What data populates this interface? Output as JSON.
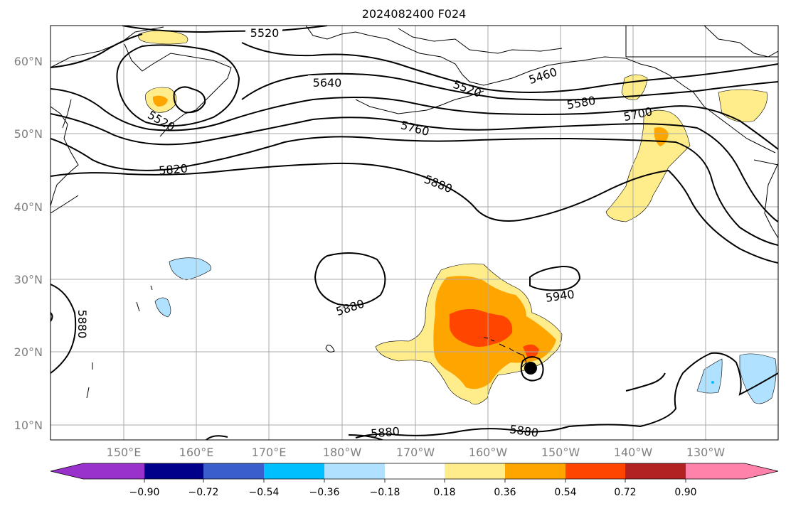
{
  "title": "2024082400 F024",
  "map": {
    "lat_labels": [
      "60°N",
      "50°N",
      "40°N",
      "30°N",
      "20°N",
      "10°N"
    ],
    "lon_labels": [
      "150°E",
      "160°E",
      "170°E",
      "180°W",
      "170°W",
      "160°W",
      "150°W",
      "140°W",
      "130°W"
    ],
    "contour_labels": [
      {
        "text": "5520",
        "id": "label-5520-a"
      },
      {
        "text": "5640",
        "id": "label-5640"
      },
      {
        "text": "5520",
        "id": "label-5520-b"
      },
      {
        "text": "5460",
        "id": "label-5460"
      },
      {
        "text": "5580",
        "id": "label-5580"
      },
      {
        "text": "5700",
        "id": "label-5700"
      },
      {
        "text": "5760",
        "id": "label-5760"
      },
      {
        "text": "5520",
        "id": "label-5520-c"
      },
      {
        "text": "5820",
        "id": "label-5820"
      },
      {
        "text": "5880",
        "id": "label-5880-a"
      },
      {
        "text": "5880",
        "id": "label-5880-b"
      },
      {
        "text": "5940",
        "id": "label-5940"
      },
      {
        "text": "5880",
        "id": "label-5880-c"
      },
      {
        "text": "5880",
        "id": "label-5880-d"
      },
      {
        "text": "5880",
        "id": "label-5880-e"
      }
    ],
    "storm_marker": "filled-circle-icon",
    "colors": {
      "contour": "#000000",
      "grid": "#aaaaaa",
      "tick_label": "#808080"
    }
  },
  "colorbar": {
    "tick_labels": [
      "−0.90",
      "−0.72",
      "−0.54",
      "−0.36",
      "−0.18",
      "0.18",
      "0.36",
      "0.54",
      "0.72",
      "0.90"
    ],
    "colors": [
      "#9932cc",
      "#00008b",
      "#3a5fcd",
      "#00bfff",
      "#b0e2ff",
      "#ffffff",
      "#ffec8b",
      "#ffa500",
      "#ff4500",
      "#b22222",
      "#ff82ab"
    ]
  }
}
